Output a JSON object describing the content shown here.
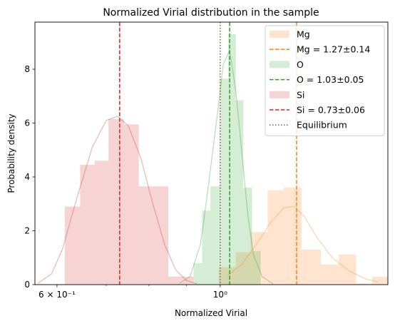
{
  "chart_data": {
    "type": "histogram",
    "title": "Normalized Virial distribution in the sample",
    "xlabel": "Normalized Virial",
    "ylabel": "Probability density",
    "x_scale": "log",
    "xlim": [
      0.56,
      1.69
    ],
    "ylim": [
      0,
      9.75
    ],
    "x_tick_labels": [
      {
        "value": 0.6,
        "label": "6 × 10⁻¹"
      },
      {
        "value": 1.0,
        "label": "10⁰"
      }
    ],
    "y_ticks": [
      0,
      2,
      4,
      6,
      8
    ],
    "legend_position": "upper right",
    "equilibrium": {
      "label": "Equilibrium",
      "x": 1.0,
      "color": "#8c564b"
    },
    "series": [
      {
        "name": "Mg",
        "mean_label": "Mg = 1.27±0.14",
        "mean": 1.27,
        "color": "#ff7f0e",
        "bins": [
          {
            "x0": 0.995,
            "x1": 1.05,
            "h": 0.65
          },
          {
            "x0": 1.05,
            "x1": 1.1,
            "h": 1.2
          },
          {
            "x0": 1.1,
            "x1": 1.16,
            "h": 1.95
          },
          {
            "x0": 1.16,
            "x1": 1.22,
            "h": 3.5
          },
          {
            "x0": 1.22,
            "x1": 1.29,
            "h": 3.6
          },
          {
            "x0": 1.29,
            "x1": 1.37,
            "h": 1.3
          },
          {
            "x0": 1.37,
            "x1": 1.45,
            "h": 0.75
          },
          {
            "x0": 1.45,
            "x1": 1.53,
            "h": 1.12
          },
          {
            "x0": 1.53,
            "x1": 1.61,
            "h": 0.05
          },
          {
            "x0": 1.61,
            "x1": 1.69,
            "h": 0.3
          }
        ],
        "kde": [
          [
            1.02,
            0.3
          ],
          [
            1.07,
            0.75
          ],
          [
            1.12,
            1.5
          ],
          [
            1.17,
            2.3
          ],
          [
            1.22,
            2.85
          ],
          [
            1.26,
            2.9
          ],
          [
            1.3,
            2.55
          ],
          [
            1.35,
            1.8
          ],
          [
            1.42,
            1.0
          ],
          [
            1.5,
            0.5
          ],
          [
            1.58,
            0.2
          ],
          [
            1.64,
            0.1
          ]
        ]
      },
      {
        "name": "O",
        "mean_label": "O = 1.03±0.05",
        "mean": 1.03,
        "color": "#2ca02c",
        "bins": [
          {
            "x0": 0.92,
            "x1": 0.945,
            "h": 0.8
          },
          {
            "x0": 0.945,
            "x1": 0.97,
            "h": 2.75
          },
          {
            "x0": 0.97,
            "x1": 1.0,
            "h": 3.65
          },
          {
            "x0": 1.0,
            "x1": 1.025,
            "h": 7.65
          },
          {
            "x0": 1.025,
            "x1": 1.05,
            "h": 9.3
          },
          {
            "x0": 1.05,
            "x1": 1.075,
            "h": 6.85
          },
          {
            "x0": 1.075,
            "x1": 1.105,
            "h": 3.6
          },
          {
            "x0": 1.105,
            "x1": 1.135,
            "h": 1.25
          }
        ],
        "kde": [
          [
            0.88,
            0.05
          ],
          [
            0.91,
            0.3
          ],
          [
            0.94,
            1.5
          ],
          [
            0.96,
            3.3
          ],
          [
            0.99,
            6.2
          ],
          [
            1.01,
            8.2
          ],
          [
            1.03,
            8.7
          ],
          [
            1.05,
            7.2
          ],
          [
            1.07,
            4.9
          ],
          [
            1.09,
            2.6
          ],
          [
            1.11,
            1.1
          ],
          [
            1.14,
            0.3
          ],
          [
            1.18,
            0.03
          ]
        ]
      },
      {
        "name": "Si",
        "mean_label": "Si = 0.73±0.06",
        "mean": 0.73,
        "color": "#d62728",
        "bins": [
          {
            "x0": 0.615,
            "x1": 0.645,
            "h": 2.9
          },
          {
            "x0": 0.645,
            "x1": 0.675,
            "h": 4.45
          },
          {
            "x0": 0.675,
            "x1": 0.705,
            "h": 4.6
          },
          {
            "x0": 0.705,
            "x1": 0.74,
            "h": 6.15
          },
          {
            "x0": 0.74,
            "x1": 0.775,
            "h": 5.95
          },
          {
            "x0": 0.775,
            "x1": 0.81,
            "h": 3.65
          },
          {
            "x0": 0.81,
            "x1": 0.85,
            "h": 3.65
          },
          {
            "x0": 0.85,
            "x1": 0.885,
            "h": 0.3
          },
          {
            "x0": 0.885,
            "x1": 0.92,
            "h": 0.3
          }
        ],
        "kde": [
          [
            0.565,
            0.05
          ],
          [
            0.59,
            0.4
          ],
          [
            0.61,
            1.3
          ],
          [
            0.64,
            3.3
          ],
          [
            0.67,
            5.1
          ],
          [
            0.7,
            6.1
          ],
          [
            0.725,
            6.25
          ],
          [
            0.75,
            5.9
          ],
          [
            0.78,
            4.7
          ],
          [
            0.81,
            3.0
          ],
          [
            0.84,
            1.5
          ],
          [
            0.87,
            0.55
          ],
          [
            0.9,
            0.15
          ],
          [
            0.93,
            0.03
          ]
        ]
      }
    ]
  }
}
